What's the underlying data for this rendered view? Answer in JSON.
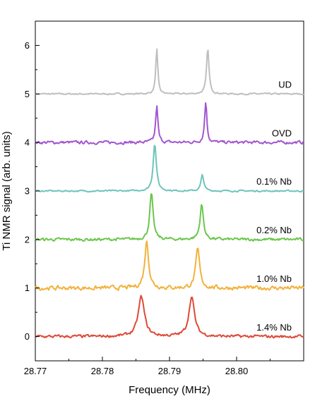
{
  "chart_data": {
    "type": "line",
    "title": "",
    "xlabel": "Frequency (MHz)",
    "ylabel": "Ti NMR signal (arb. units)",
    "xlim": [
      28.77,
      28.81
    ],
    "ylim": [
      -0.5,
      6.5
    ],
    "x_ticks": [
      "28.77",
      "28.78",
      "28.79",
      "28.80"
    ],
    "y_ticks": [
      "0",
      "1",
      "2",
      "3",
      "4",
      "5",
      "6"
    ],
    "grid": false,
    "legend": "none",
    "series": [
      {
        "name": "UD",
        "color": "#bfbfbf",
        "offset": 5,
        "peaks": [
          {
            "x": 28.7881,
            "height": 0.93,
            "width": 0.00018
          },
          {
            "x": 28.7957,
            "height": 0.94,
            "width": 0.00022
          }
        ],
        "noise": 0.025
      },
      {
        "name": "OVD",
        "color": "#a355d0",
        "offset": 4,
        "peaks": [
          {
            "x": 28.7881,
            "height": 0.75,
            "width": 0.0002
          },
          {
            "x": 28.7954,
            "height": 0.85,
            "width": 0.0002
          }
        ],
        "noise": 0.05
      },
      {
        "name": "0.1% Nb",
        "color": "#6fc4bb",
        "offset": 3,
        "peaks": [
          {
            "x": 28.7878,
            "height": 0.98,
            "width": 0.00028
          },
          {
            "x": 28.7949,
            "height": 0.33,
            "width": 0.00025
          }
        ],
        "noise": 0.025
      },
      {
        "name": "0.2% Nb",
        "color": "#6cc64d",
        "offset": 2,
        "peaks": [
          {
            "x": 28.7873,
            "height": 0.95,
            "width": 0.0003
          },
          {
            "x": 28.7948,
            "height": 0.72,
            "width": 0.0003
          }
        ],
        "noise": 0.05
      },
      {
        "name": "1.0% Nb",
        "color": "#f2b23c",
        "offset": 1,
        "peaks": [
          {
            "x": 28.7866,
            "height": 0.97,
            "width": 0.00035
          },
          {
            "x": 28.7942,
            "height": 0.8,
            "width": 0.00035
          }
        ],
        "noise": 0.07
      },
      {
        "name": "1.4% Nb",
        "color": "#dd4a38",
        "offset": 0,
        "peaks": [
          {
            "x": 28.7858,
            "height": 0.82,
            "width": 0.00055
          },
          {
            "x": 28.7933,
            "height": 0.82,
            "width": 0.0005
          }
        ],
        "noise": 0.05
      }
    ]
  }
}
